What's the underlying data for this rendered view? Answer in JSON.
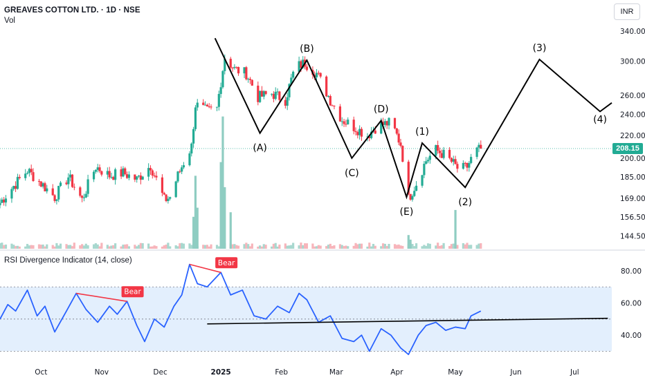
{
  "header": {
    "title": "GREAVES COTTON LTD. · 1D · NSE",
    "volume_label": "Vol",
    "currency": "INR",
    "last_price": "208.15"
  },
  "rsi_panel": {
    "title": "RSI Divergence Indicator (14, close)"
  },
  "colors": {
    "up": "#22ab94",
    "down": "#f23645",
    "rsi_line": "#2962ff",
    "rsi_band": "#e3effd",
    "divergence": "#f23645",
    "annotation": "#000000"
  },
  "chart_data": [
    {
      "type": "candlestick",
      "title": "GREAVES COTTON LTD. · 1D · NSE",
      "y_scale": "log",
      "ylim": [
        137,
        355
      ],
      "price_ticks": [
        "340.00",
        "300.00",
        "260.00",
        "240.00",
        "220.00",
        "200.00",
        "185.00",
        "169.00",
        "156.50",
        "144.50"
      ],
      "x_ticks": [
        "Oct",
        "Nov",
        "Dec",
        "2025",
        "Feb",
        "Mar",
        "Apr",
        "May",
        "Jun",
        "Jul"
      ],
      "x_range": [
        "2024-09-10",
        "2025-07-20"
      ],
      "last_price": 208.15,
      "close_series": [
        [
          "2024-09-10",
          166
        ],
        [
          "2024-09-17",
          178
        ],
        [
          "2024-09-24",
          190
        ],
        [
          "2024-10-01",
          180
        ],
        [
          "2024-10-08",
          170
        ],
        [
          "2024-10-15",
          185
        ],
        [
          "2024-10-22",
          168
        ],
        [
          "2024-10-29",
          193
        ],
        [
          "2024-11-05",
          186
        ],
        [
          "2024-11-12",
          188
        ],
        [
          "2024-11-19",
          183
        ],
        [
          "2024-11-26",
          194
        ],
        [
          "2024-12-03",
          168
        ],
        [
          "2024-12-06",
          170
        ],
        [
          "2024-12-10",
          186
        ],
        [
          "2024-12-14",
          200
        ],
        [
          "2024-12-17",
          210
        ],
        [
          "2024-12-19",
          250
        ],
        [
          "2024-12-25",
          243
        ],
        [
          "2024-12-30",
          246
        ],
        [
          "2025-01-03",
          305
        ],
        [
          "2025-01-08",
          290
        ],
        [
          "2025-01-14",
          285
        ],
        [
          "2025-01-20",
          258
        ],
        [
          "2025-01-27",
          262
        ],
        [
          "2025-02-03",
          255
        ],
        [
          "2025-02-08",
          292
        ],
        [
          "2025-02-13",
          298
        ],
        [
          "2025-02-19",
          285
        ],
        [
          "2025-02-26",
          255
        ],
        [
          "2025-03-04",
          235
        ],
        [
          "2025-03-10",
          228
        ],
        [
          "2025-03-17",
          220
        ],
        [
          "2025-03-22",
          229
        ],
        [
          "2025-03-29",
          232
        ],
        [
          "2025-04-03",
          212
        ],
        [
          "2025-04-07",
          169
        ],
        [
          "2025-04-11",
          180
        ],
        [
          "2025-04-16",
          198
        ],
        [
          "2025-04-21",
          207
        ],
        [
          "2025-04-25",
          203
        ],
        [
          "2025-04-29",
          197
        ],
        [
          "2025-05-03",
          190
        ],
        [
          "2025-05-07",
          193
        ],
        [
          "2025-05-11",
          205
        ],
        [
          "2025-05-14",
          208.15
        ]
      ],
      "volume_series": [
        [
          "2024-12-18",
          0.14
        ],
        [
          "2024-12-19",
          0.32
        ],
        [
          "2024-12-20",
          0.18
        ],
        [
          "2025-01-01",
          0.38
        ],
        [
          "2025-01-02",
          0.58
        ],
        [
          "2025-01-03",
          0.27
        ],
        [
          "2025-01-06",
          0.16
        ],
        [
          "2025-04-07",
          0.06
        ],
        [
          "2025-04-08",
          0.04
        ],
        [
          "2025-05-01",
          0.17
        ]
      ],
      "wave_labels": [
        {
          "label": "(A)",
          "x": "2025-01-21",
          "price": 222
        },
        {
          "label": "(B)",
          "x": "2025-02-14",
          "price": 301
        },
        {
          "label": "(C)",
          "x": "2025-03-09",
          "price": 200
        },
        {
          "label": "(D)",
          "x": "2025-03-24",
          "price": 234
        },
        {
          "label": "(E)",
          "x": "2025-04-06",
          "price": 170
        },
        {
          "label": "(1)",
          "x": "2025-04-14",
          "price": 213
        },
        {
          "label": "(2)",
          "x": "2025-05-06",
          "price": 177
        },
        {
          "label": "(3)",
          "x": "2025-06-13",
          "price": 302
        },
        {
          "label": "(4)",
          "x": "2025-07-14",
          "price": 243
        }
      ],
      "wave_path": [
        [
          "2024-12-29",
          330
        ],
        [
          "2025-01-21",
          222
        ],
        [
          "2025-02-14",
          301
        ],
        [
          "2025-03-09",
          200
        ],
        [
          "2025-03-24",
          234
        ],
        [
          "2025-04-06",
          170
        ],
        [
          "2025-04-14",
          213
        ],
        [
          "2025-05-06",
          177
        ],
        [
          "2025-06-13",
          302
        ],
        [
          "2025-07-14",
          243
        ],
        [
          "2025-07-20",
          252
        ]
      ]
    },
    {
      "type": "line",
      "title": "RSI Divergence Indicator (14, close)",
      "ylim": [
        25,
        86
      ],
      "y_ticks": [
        "80.00",
        "60.00",
        "40.00"
      ],
      "band": [
        30,
        70
      ],
      "midline": 50,
      "series": [
        {
          "values": [
            [
              "2024-09-10",
              50
            ],
            [
              "2024-09-14",
              59
            ],
            [
              "2024-09-18",
              55
            ],
            [
              "2024-09-24",
              68
            ],
            [
              "2024-09-29",
              52
            ],
            [
              "2024-10-03",
              58
            ],
            [
              "2024-10-08",
              42
            ],
            [
              "2024-10-14",
              55
            ],
            [
              "2024-10-19",
              66
            ],
            [
              "2024-10-24",
              56
            ],
            [
              "2024-10-30",
              48
            ],
            [
              "2024-11-05",
              58
            ],
            [
              "2024-11-09",
              53
            ],
            [
              "2024-11-14",
              61
            ],
            [
              "2024-11-19",
              46
            ],
            [
              "2024-11-23",
              36
            ],
            [
              "2024-11-28",
              50
            ],
            [
              "2024-12-03",
              45
            ],
            [
              "2024-12-08",
              58
            ],
            [
              "2024-12-12",
              65
            ],
            [
              "2024-12-16",
              84
            ],
            [
              "2024-12-20",
              72
            ],
            [
              "2024-12-25",
              70
            ],
            [
              "2025-01-01",
              79
            ],
            [
              "2025-01-06",
              65
            ],
            [
              "2025-01-12",
              68
            ],
            [
              "2025-01-18",
              52
            ],
            [
              "2025-01-24",
              50
            ],
            [
              "2025-01-30",
              58
            ],
            [
              "2025-02-05",
              54
            ],
            [
              "2025-02-10",
              66
            ],
            [
              "2025-02-14",
              62
            ],
            [
              "2025-02-20",
              48
            ],
            [
              "2025-02-26",
              52
            ],
            [
              "2025-03-04",
              38
            ],
            [
              "2025-03-10",
              36
            ],
            [
              "2025-03-14",
              40
            ],
            [
              "2025-03-18",
              30
            ],
            [
              "2025-03-24",
              44
            ],
            [
              "2025-03-29",
              40
            ],
            [
              "2025-04-03",
              32
            ],
            [
              "2025-04-07",
              28
            ],
            [
              "2025-04-12",
              40
            ],
            [
              "2025-04-16",
              46
            ],
            [
              "2025-04-21",
              48
            ],
            [
              "2025-04-26",
              43
            ],
            [
              "2025-05-01",
              45
            ],
            [
              "2025-05-06",
              44
            ],
            [
              "2025-05-09",
              52
            ],
            [
              "2025-05-14",
              55
            ]
          ]
        }
      ],
      "divergences": [
        {
          "label": "Bear",
          "from": [
            "2024-10-19",
            66
          ],
          "to": [
            "2024-11-14",
            61
          ]
        },
        {
          "label": "Bear",
          "from": [
            "2024-12-16",
            84
          ],
          "to": [
            "2025-01-01",
            79
          ]
        }
      ],
      "trendline": [
        [
          "2024-12-25",
          47
        ],
        [
          "2025-07-18",
          50.5
        ]
      ]
    }
  ]
}
